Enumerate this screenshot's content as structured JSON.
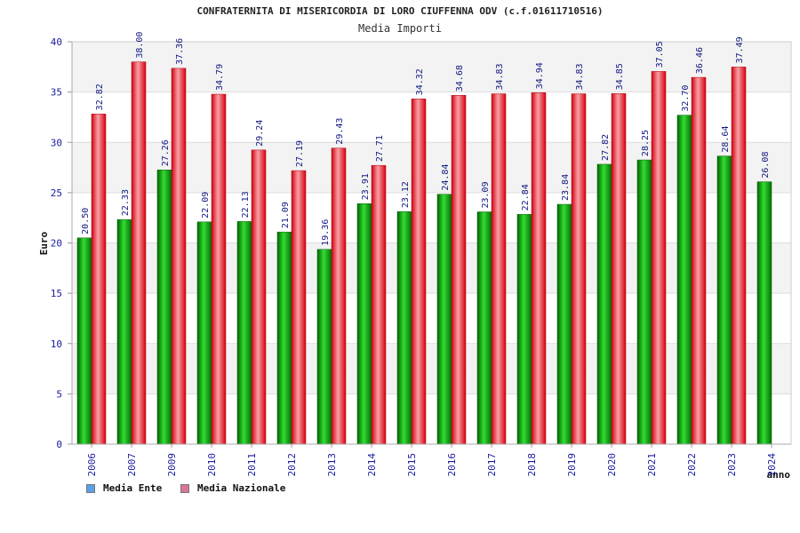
{
  "chart_data": {
    "type": "bar",
    "title": "CONFRATERNITA DI MISERICORDIA DI LORO CIUFFENNA ODV (c.f.01611710516)",
    "subtitle": "Media Importi",
    "xlabel": "anno",
    "ylabel": "Euro",
    "ylim": [
      0,
      40
    ],
    "yticks": [
      0,
      5,
      10,
      15,
      20,
      25,
      30,
      35,
      40
    ],
    "grid": true,
    "legend_position": "bottom-left",
    "categories": [
      "2006",
      "2007",
      "2009",
      "2010",
      "2011",
      "2012",
      "2013",
      "2014",
      "2015",
      "2016",
      "2017",
      "2018",
      "2019",
      "2020",
      "2021",
      "2022",
      "2023",
      "2024"
    ],
    "series": [
      {
        "name": "Media Ente",
        "color": "#0aa00a",
        "legend_color": "#5aa0e6",
        "values": [
          20.5,
          22.33,
          27.26,
          22.09,
          22.13,
          21.09,
          19.36,
          23.91,
          23.12,
          24.84,
          23.09,
          22.84,
          23.84,
          27.82,
          28.25,
          32.7,
          28.64,
          26.08
        ],
        "labels": [
          "20.50",
          "22.33",
          "27.26",
          "22.09",
          "22.13",
          "21.09",
          "19.36",
          "23.91",
          "23.12",
          "24.84",
          "23.09",
          "22.84",
          "23.84",
          "27.82",
          "28.25",
          "32.70",
          "28.64",
          "26.08"
        ]
      },
      {
        "name": "Media Nazionale",
        "color": "#e8202a",
        "legend_color": "#d9779a",
        "values": [
          32.82,
          38.0,
          37.36,
          34.79,
          29.24,
          27.19,
          29.43,
          27.71,
          34.32,
          34.68,
          34.83,
          34.94,
          34.83,
          34.85,
          37.05,
          36.46,
          37.49,
          null
        ],
        "labels": [
          "32.82",
          "38.00",
          "37.36",
          "34.79",
          "29.24",
          "27.19",
          "29.43",
          "27.71",
          "34.32",
          "34.68",
          "34.83",
          "34.94",
          "34.83",
          "34.85",
          "37.05",
          "36.46",
          "37.49",
          null
        ]
      }
    ]
  }
}
